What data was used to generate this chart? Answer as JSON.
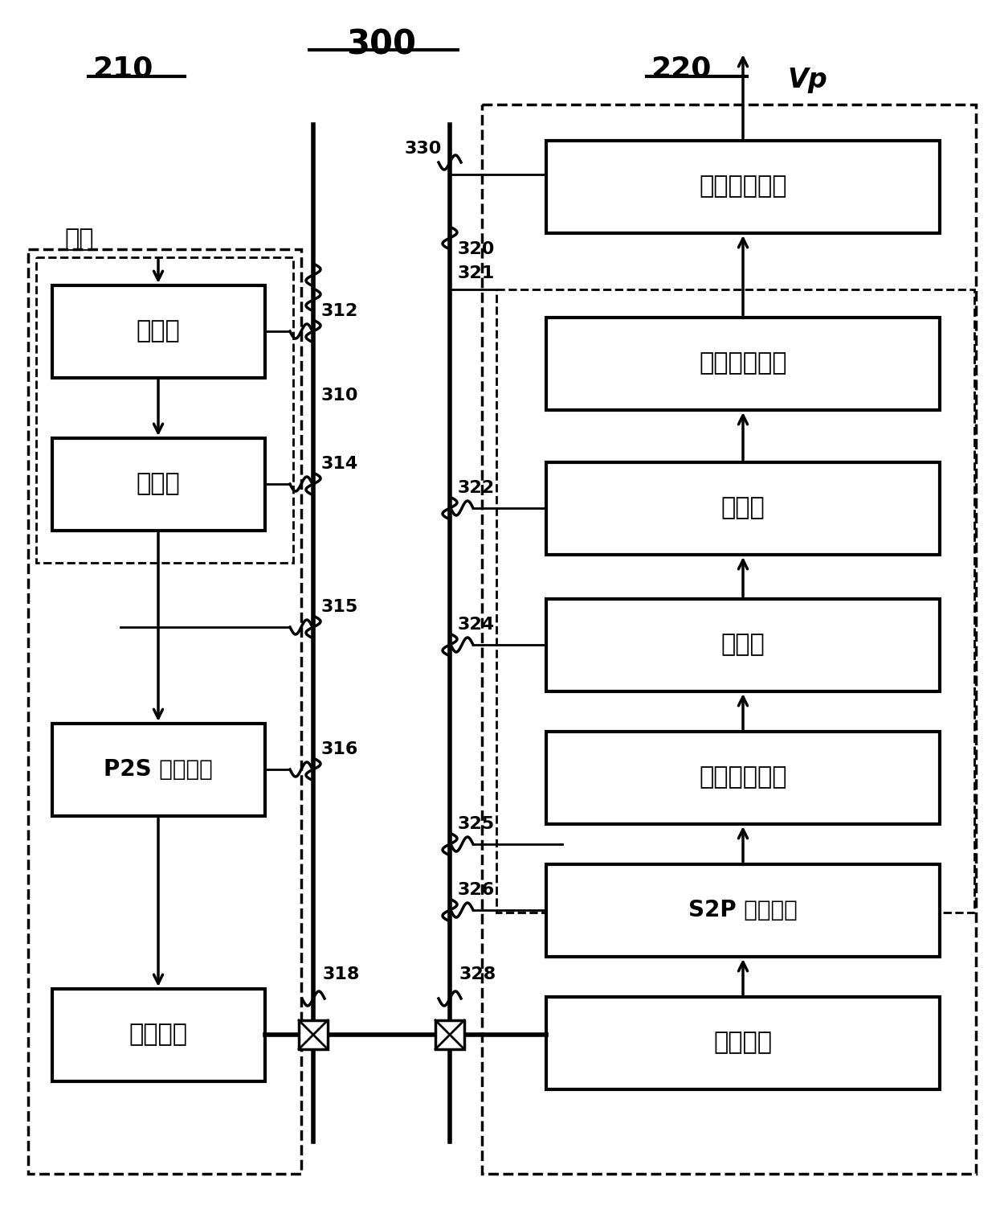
{
  "bg_color": "#ffffff",
  "label_210": "210",
  "label_220": "220",
  "label_300": "300",
  "label_vp": "Vp",
  "label_data": "数据",
  "left_blocks": [
    "扰码器",
    "编码器",
    "P2S 转换部分",
    "传输部分"
  ],
  "right_blocks": [
    "数据驱动部分",
    "像素布置部分",
    "解扰器",
    "解码器",
    "字节布置部分",
    "S2P 转换部分",
    "接收部分"
  ],
  "left_labels": [
    "312",
    "314",
    "315",
    "316",
    "318",
    "310"
  ],
  "right_labels": [
    "330",
    "320",
    "321",
    "322",
    "324",
    "325",
    "326",
    "328"
  ]
}
